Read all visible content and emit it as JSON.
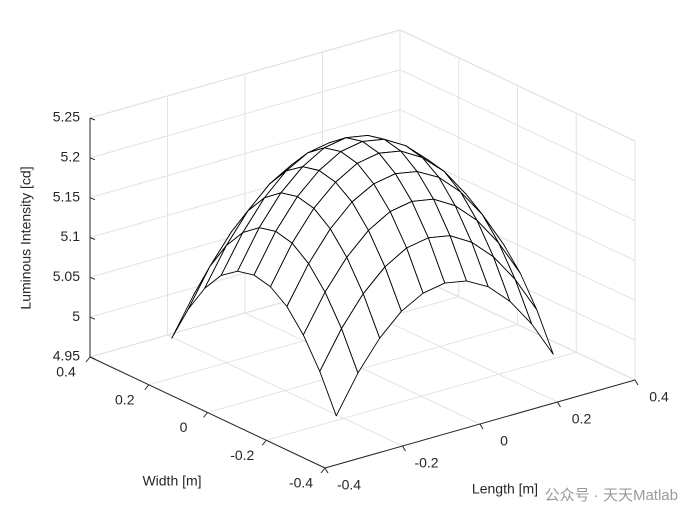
{
  "chart_data": {
    "type": "surface",
    "xlabel": "Length [m]",
    "ylabel": "Width [m]",
    "zlabel": "Luminous Intensity [cd]",
    "watermark": "公众号 · 天天Matlab",
    "x": [
      -0.28,
      -0.224,
      -0.168,
      -0.112,
      -0.056,
      0,
      0.056,
      0.112,
      0.168,
      0.224,
      0.28
    ],
    "y": [
      -0.28,
      -0.224,
      -0.168,
      -0.112,
      -0.056,
      0,
      0.056,
      0.112,
      0.168,
      0.224,
      0.28
    ],
    "z": [
      [
        4.978,
        5.024,
        5.06,
        5.086,
        5.101,
        5.106,
        5.101,
        5.086,
        5.06,
        5.024,
        4.978
      ],
      [
        5.024,
        5.07,
        5.106,
        5.132,
        5.148,
        5.153,
        5.148,
        5.132,
        5.106,
        5.07,
        5.024
      ],
      [
        5.06,
        5.106,
        5.142,
        5.168,
        5.184,
        5.189,
        5.184,
        5.168,
        5.142,
        5.106,
        5.06
      ],
      [
        5.086,
        5.132,
        5.168,
        5.194,
        5.209,
        5.214,
        5.209,
        5.194,
        5.168,
        5.132,
        5.086
      ],
      [
        5.101,
        5.148,
        5.184,
        5.209,
        5.225,
        5.23,
        5.225,
        5.209,
        5.184,
        5.148,
        5.101
      ],
      [
        5.106,
        5.153,
        5.189,
        5.214,
        5.23,
        5.235,
        5.23,
        5.214,
        5.189,
        5.153,
        5.106
      ],
      [
        5.101,
        5.148,
        5.184,
        5.209,
        5.225,
        5.23,
        5.225,
        5.209,
        5.184,
        5.148,
        5.101
      ],
      [
        5.086,
        5.132,
        5.168,
        5.194,
        5.209,
        5.214,
        5.209,
        5.194,
        5.168,
        5.132,
        5.086
      ],
      [
        5.06,
        5.106,
        5.142,
        5.168,
        5.184,
        5.189,
        5.184,
        5.168,
        5.142,
        5.106,
        5.06
      ],
      [
        5.024,
        5.07,
        5.106,
        5.132,
        5.148,
        5.153,
        5.148,
        5.132,
        5.106,
        5.07,
        5.024
      ],
      [
        4.978,
        5.024,
        5.06,
        5.086,
        5.101,
        5.106,
        5.101,
        5.086,
        5.06,
        5.024,
        4.978
      ]
    ],
    "color": "#000000",
    "xlim": [
      -0.4,
      0.4
    ],
    "ylim": [
      -0.4,
      0.4
    ],
    "zlim": [
      4.95,
      5.25
    ],
    "xticks": [
      -0.4,
      -0.2,
      0,
      0.2,
      0.4
    ],
    "yticks": [
      -0.4,
      -0.2,
      0,
      0.2,
      0.4
    ],
    "zticks": [
      4.95,
      5,
      5.05,
      5.1,
      5.15,
      5.2,
      5.25
    ],
    "grid": true
  }
}
